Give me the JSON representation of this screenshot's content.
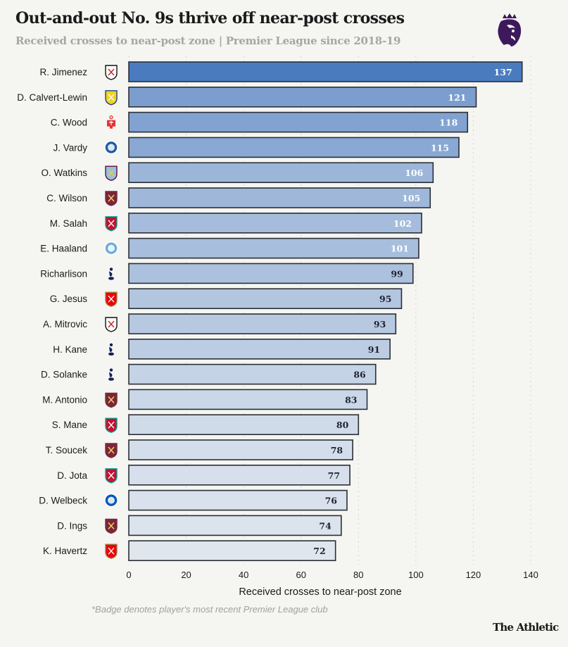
{
  "header": {
    "title": "Out-and-out No. 9s thrive off near-post crosses",
    "subtitle": "Received crosses to near-post zone | Premier League since 2018-19",
    "logo_icon": "premier-league-lion-icon"
  },
  "footer": {
    "footnote": "*Badge denotes player's most recent Premier League club",
    "brand": "The Athletic"
  },
  "colors": {
    "bar_dark": "#4a7bbf",
    "bar_light": "#dfe6ee",
    "bar_stroke": "#2b2f36",
    "label_light": "#ffffff",
    "label_dark": "#1e2230",
    "grid": "#c9c9c9",
    "pl_purple": "#3d195b"
  },
  "chart_data": {
    "type": "bar",
    "orientation": "horizontal",
    "title": "Out-and-out No. 9s thrive off near-post crosses",
    "subtitle": "Received crosses to near-post zone | Premier League since 2018-19",
    "xlabel": "Received crosses to near-post zone",
    "ylabel": "",
    "xlim": [
      0,
      140
    ],
    "xticks": [
      0,
      20,
      40,
      60,
      80,
      100,
      120,
      140
    ],
    "grid": "vertical dotted",
    "categories": [
      "R. Jimenez",
      "D. Calvert-Lewin",
      "C. Wood",
      "J. Vardy",
      "O. Watkins",
      "C. Wilson",
      "M. Salah",
      "E. Haaland",
      "Richarlison",
      "G. Jesus",
      "A. Mitrovic",
      "H. Kane",
      "D. Solanke",
      "M. Antonio",
      "S. Mane",
      "T. Soucek",
      "D. Jota",
      "D. Welbeck",
      "D. Ings",
      "K. Havertz"
    ],
    "values": [
      137,
      121,
      118,
      115,
      106,
      105,
      102,
      101,
      99,
      95,
      93,
      91,
      86,
      83,
      80,
      78,
      77,
      76,
      74,
      72
    ],
    "badges": [
      "fulham",
      "leeds",
      "nottingham-forest",
      "leicester",
      "aston-villa",
      "west-ham",
      "liverpool",
      "man-city",
      "tottenham",
      "arsenal",
      "fulham",
      "tottenham",
      "tottenham",
      "west-ham",
      "liverpool",
      "west-ham",
      "liverpool",
      "brighton",
      "west-ham",
      "arsenal"
    ]
  },
  "badge_styles": {
    "fulham": {
      "fill": "#ffffff",
      "stroke": "#111111",
      "accent": "#cc2222",
      "shape": "shield"
    },
    "leeds": {
      "fill": "#f2d21b",
      "stroke": "#1d428a",
      "accent": "#ffffff",
      "shape": "shield"
    },
    "nottingham-forest": {
      "fill": "#e53233",
      "stroke": "#e53233",
      "accent": "#ffffff",
      "shape": "tree"
    },
    "leicester": {
      "fill": "#1d5ba4",
      "stroke": "#1d5ba4",
      "accent": "#ffffff",
      "shape": "circle"
    },
    "aston-villa": {
      "fill": "#95bfe5",
      "stroke": "#670e36",
      "accent": "#f2d21b",
      "shape": "shield"
    },
    "west-ham": {
      "fill": "#7a263a",
      "stroke": "#7a263a",
      "accent": "#f3d459",
      "shape": "shield"
    },
    "liverpool": {
      "fill": "#c8102e",
      "stroke": "#00a398",
      "accent": "#ffffff",
      "shape": "shield"
    },
    "man-city": {
      "fill": "#6cabdd",
      "stroke": "#1c2c5b",
      "accent": "#ffffff",
      "shape": "circle"
    },
    "tottenham": {
      "fill": "#132257",
      "stroke": "#132257",
      "accent": "#ffffff",
      "shape": "cockerel"
    },
    "arsenal": {
      "fill": "#ef0107",
      "stroke": "#9c824a",
      "accent": "#ffffff",
      "shape": "shield"
    },
    "brighton": {
      "fill": "#0057b8",
      "stroke": "#0057b8",
      "accent": "#ffffff",
      "shape": "circle"
    }
  }
}
